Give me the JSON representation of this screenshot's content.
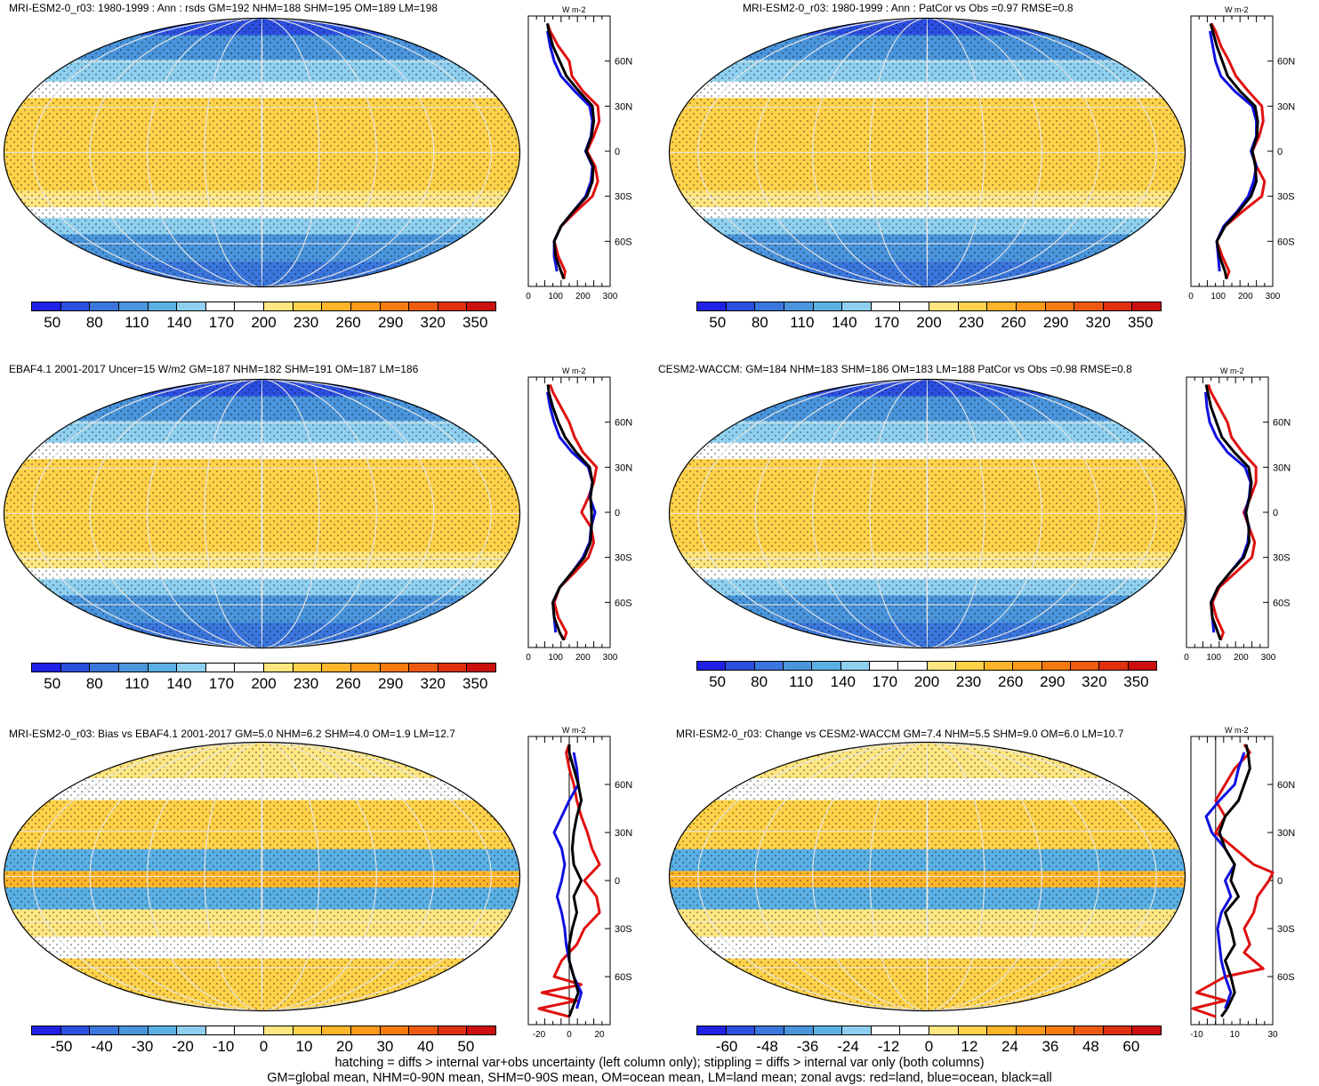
{
  "chart_data": [
    {
      "type": "heatmap",
      "title": "MRI-ESM2-0_r03: 1980-1999 : Ann : rsds GM=192 NHM=188 SHM=195 OM=189 LM=198",
      "colorbar_ticks": [
        "50",
        "80",
        "110",
        "140",
        "170",
        "200",
        "230",
        "260",
        "290",
        "320",
        "350"
      ],
      "colorbar_range": [
        35,
        365
      ],
      "zonal_xticks": [
        "0",
        "100",
        "200",
        "300"
      ],
      "zonal_xlim": [
        0,
        300
      ],
      "zonal_yticks": [
        "60N",
        "30N",
        "0",
        "30S",
        "60S"
      ],
      "zonal_units": "W m-2",
      "zonal_series": [
        {
          "color": "red",
          "lat": [
            -85,
            -80,
            -70,
            -60,
            -50,
            -40,
            -30,
            -20,
            -10,
            0,
            10,
            20,
            30,
            40,
            50,
            60,
            70,
            80,
            85
          ],
          "values": [
            130,
            135,
            110,
            95,
            120,
            175,
            235,
            255,
            245,
            215,
            240,
            260,
            255,
            200,
            160,
            150,
            110,
            80,
            70
          ]
        },
        {
          "color": "blue",
          "lat": [
            -80,
            -70,
            -60,
            -50,
            -40,
            -30,
            -20,
            -10,
            0,
            10,
            20,
            30,
            40,
            50,
            60,
            70,
            80
          ],
          "values": [
            105,
            95,
            95,
            120,
            165,
            210,
            230,
            235,
            210,
            230,
            235,
            225,
            170,
            120,
            95,
            80,
            70
          ]
        },
        {
          "color": "black",
          "lat": [
            -85,
            -80,
            -70,
            -60,
            -50,
            -40,
            -30,
            -20,
            -10,
            0,
            10,
            20,
            30,
            40,
            50,
            60,
            70,
            80,
            85
          ],
          "values": [
            130,
            120,
            100,
            95,
            120,
            165,
            215,
            235,
            238,
            212,
            232,
            240,
            235,
            185,
            140,
            115,
            90,
            75,
            70
          ]
        }
      ]
    },
    {
      "type": "heatmap",
      "title": "MRI-ESM2-0_r03: 1980-1999 : Ann : PatCor vs Obs =0.97 RMSE=0.8",
      "colorbar_ticks": [
        "50",
        "80",
        "110",
        "140",
        "170",
        "200",
        "230",
        "260",
        "290",
        "320",
        "350"
      ],
      "colorbar_range": [
        35,
        365
      ],
      "zonal_xticks": [
        "0",
        "100",
        "200",
        "300"
      ],
      "zonal_xlim": [
        0,
        300
      ],
      "zonal_yticks": [
        "60N",
        "30N",
        "0",
        "30S",
        "60S"
      ],
      "zonal_units": "W m-2",
      "zonal_series": [
        {
          "color": "red",
          "lat": [
            -85,
            -80,
            -70,
            -60,
            -50,
            -40,
            -30,
            -20,
            -10,
            0,
            10,
            20,
            30,
            40,
            50,
            60,
            70,
            80,
            85
          ],
          "values": [
            130,
            140,
            115,
            95,
            125,
            190,
            260,
            270,
            240,
            225,
            250,
            265,
            260,
            210,
            165,
            140,
            110,
            90,
            75
          ]
        },
        {
          "color": "blue",
          "lat": [
            -80,
            -70,
            -60,
            -50,
            -40,
            -30,
            -20,
            -10,
            0,
            10,
            20,
            30,
            40,
            50,
            60,
            70,
            80
          ],
          "values": [
            105,
            100,
            95,
            120,
            170,
            210,
            230,
            240,
            220,
            240,
            240,
            225,
            160,
            110,
            90,
            80,
            70
          ]
        },
        {
          "color": "black",
          "lat": [
            -85,
            -80,
            -70,
            -60,
            -50,
            -40,
            -30,
            -20,
            -10,
            0,
            10,
            20,
            30,
            40,
            50,
            60,
            70,
            80,
            85
          ],
          "values": [
            130,
            125,
            105,
            95,
            125,
            175,
            220,
            240,
            236,
            225,
            242,
            245,
            235,
            180,
            135,
            115,
            95,
            80,
            72
          ]
        }
      ]
    },
    {
      "type": "heatmap",
      "title": "EBAF4.1 2001-2017 Uncer=15 W/m2 GM=187 NHM=182 SHM=191 OM=187 LM=186",
      "colorbar_ticks": [
        "50",
        "80",
        "110",
        "140",
        "170",
        "200",
        "230",
        "260",
        "290",
        "320",
        "350"
      ],
      "colorbar_range": [
        35,
        365
      ],
      "zonal_xticks": [
        "0",
        "100",
        "200",
        "300"
      ],
      "zonal_xlim": [
        0,
        300
      ],
      "zonal_yticks": [
        "60N",
        "30N",
        "0",
        "30S",
        "60S"
      ],
      "zonal_units": "W m-2",
      "zonal_series": [
        {
          "color": "red",
          "lat": [
            -85,
            -80,
            -70,
            -60,
            -50,
            -40,
            -30,
            -20,
            -10,
            0,
            10,
            20,
            30,
            40,
            50,
            60,
            70,
            80,
            85
          ],
          "values": [
            130,
            140,
            110,
            95,
            115,
            170,
            220,
            240,
            230,
            195,
            220,
            240,
            250,
            200,
            170,
            150,
            120,
            90,
            80
          ]
        },
        {
          "color": "blue",
          "lat": [
            -80,
            -70,
            -60,
            -50,
            -40,
            -30,
            -20,
            -10,
            0,
            10,
            20,
            30,
            40,
            50,
            60,
            70,
            80
          ],
          "values": [
            100,
            95,
            90,
            115,
            160,
            200,
            225,
            230,
            245,
            225,
            235,
            220,
            160,
            115,
            95,
            80,
            70
          ]
        },
        {
          "color": "black",
          "lat": [
            -85,
            -80,
            -70,
            -60,
            -50,
            -40,
            -30,
            -20,
            -10,
            0,
            10,
            20,
            30,
            40,
            50,
            60,
            70,
            80,
            85
          ],
          "values": [
            130,
            115,
            95,
            90,
            115,
            160,
            205,
            228,
            232,
            232,
            228,
            235,
            225,
            175,
            135,
            110,
            90,
            75,
            72
          ]
        }
      ]
    },
    {
      "type": "heatmap",
      "title": "CESM2-WACCM: GM=184 NHM=183 SHM=186 OM=183 LM=188 PatCor vs Obs =0.98 RMSE=0.8",
      "colorbar_ticks": [
        "50",
        "80",
        "110",
        "140",
        "170",
        "200",
        "230",
        "260",
        "290",
        "320",
        "350"
      ],
      "colorbar_range": [
        35,
        365
      ],
      "zonal_xticks": [
        "0",
        "100",
        "200",
        "300"
      ],
      "zonal_xlim": [
        0,
        300
      ],
      "zonal_yticks": [
        "60N",
        "30N",
        "0",
        "30S",
        "60S"
      ],
      "zonal_units": "W m-2",
      "zonal_series": [
        {
          "color": "red",
          "lat": [
            -85,
            -80,
            -70,
            -60,
            -50,
            -40,
            -30,
            -20,
            -10,
            0,
            10,
            20,
            30,
            40,
            50,
            60,
            70,
            80,
            85
          ],
          "values": [
            125,
            135,
            110,
            95,
            120,
            180,
            240,
            250,
            230,
            210,
            235,
            255,
            255,
            205,
            165,
            150,
            120,
            90,
            80
          ]
        },
        {
          "color": "blue",
          "lat": [
            -80,
            -70,
            -60,
            -50,
            -40,
            -30,
            -20,
            -10,
            0,
            10,
            20,
            30,
            40,
            50,
            60,
            70,
            80
          ],
          "values": [
            100,
            95,
            90,
            115,
            160,
            205,
            225,
            230,
            215,
            230,
            235,
            215,
            150,
            110,
            85,
            75,
            70
          ]
        },
        {
          "color": "black",
          "lat": [
            -85,
            -80,
            -70,
            -60,
            -50,
            -40,
            -30,
            -20,
            -10,
            0,
            10,
            20,
            30,
            40,
            50,
            60,
            70,
            80,
            85
          ],
          "values": [
            125,
            115,
            95,
            90,
            115,
            160,
            210,
            230,
            228,
            218,
            232,
            238,
            228,
            175,
            130,
            110,
            90,
            78,
            72
          ]
        }
      ]
    },
    {
      "type": "heatmap",
      "title": "MRI-ESM2-0_r03: Bias vs EBAF4.1 2001-2017 GM=5.0 NHM=6.2 SHM=4.0 OM=1.9 LM=12.7",
      "colorbar_ticks": [
        "-50",
        "-40",
        "-30",
        "-20",
        "-10",
        "0",
        "10",
        "20",
        "30",
        "40",
        "50"
      ],
      "colorbar_range": [
        -57.5,
        57.5
      ],
      "zonal_xticks": [
        "-20",
        "0",
        "20"
      ],
      "zonal_xlim": [
        -27,
        27
      ],
      "zonal_yticks": [
        "60N",
        "30N",
        "0",
        "30S",
        "60S"
      ],
      "zonal_units": "W m-2",
      "zonal_series": [
        {
          "color": "red",
          "lat": [
            -85,
            -80,
            -75,
            -70,
            -65,
            -60,
            -50,
            -40,
            -30,
            -20,
            -10,
            0,
            10,
            20,
            30,
            40,
            50,
            60,
            70,
            80,
            85
          ],
          "values": [
            0,
            -20,
            5,
            -18,
            8,
            -10,
            -5,
            5,
            10,
            20,
            18,
            10,
            20,
            15,
            12,
            8,
            5,
            3,
            0,
            -2,
            0
          ]
        },
        {
          "color": "blue",
          "lat": [
            -80,
            -70,
            -60,
            -50,
            -40,
            -30,
            -20,
            -10,
            0,
            10,
            20,
            30,
            40,
            50,
            60,
            70,
            80
          ],
          "values": [
            5,
            8,
            3,
            0,
            -2,
            -3,
            -5,
            -8,
            -5,
            -3,
            -5,
            -10,
            -5,
            0,
            6,
            5,
            3
          ]
        },
        {
          "color": "black",
          "lat": [
            -85,
            -80,
            -70,
            -60,
            -50,
            -40,
            -30,
            -20,
            -10,
            0,
            10,
            20,
            30,
            40,
            50,
            60,
            70,
            80,
            85
          ],
          "values": [
            0,
            2,
            6,
            3,
            0,
            0,
            2,
            5,
            3,
            8,
            3,
            2,
            3,
            5,
            8,
            6,
            3,
            0,
            0
          ]
        }
      ]
    },
    {
      "type": "heatmap",
      "title": "MRI-ESM2-0_r03: Change vs CESM2-WACCM GM=7.4 NHM=5.5 SHM=9.0 OM=6.0 LM=10.7",
      "colorbar_ticks": [
        "-60",
        "-48",
        "-36",
        "-24",
        "-12",
        "0",
        "12",
        "24",
        "36",
        "48",
        "60"
      ],
      "colorbar_range": [
        -69,
        69
      ],
      "zonal_xticks": [
        "-10",
        "10",
        "30"
      ],
      "zonal_xlim": [
        -13,
        30
      ],
      "zonal_yticks": [
        "60N",
        "30N",
        "0",
        "30S",
        "60S"
      ],
      "zonal_units": "W m-2",
      "zonal_series": [
        {
          "color": "red",
          "lat": [
            -85,
            -80,
            -75,
            -70,
            -60,
            -55,
            -50,
            -45,
            -40,
            -30,
            -20,
            -10,
            0,
            5,
            10,
            20,
            30,
            40,
            50,
            60,
            70,
            80,
            85
          ],
          "values": [
            0,
            -12,
            5,
            -10,
            5,
            25,
            20,
            15,
            18,
            15,
            20,
            22,
            28,
            30,
            20,
            10,
            0,
            5,
            0,
            5,
            10,
            18,
            15
          ]
        },
        {
          "color": "blue",
          "lat": [
            -80,
            -70,
            -60,
            -50,
            -40,
            -30,
            -20,
            -10,
            0,
            10,
            20,
            30,
            40,
            50,
            60,
            70,
            80
          ],
          "values": [
            5,
            8,
            5,
            3,
            2,
            1,
            3,
            8,
            5,
            10,
            5,
            -2,
            -5,
            2,
            10,
            12,
            15
          ]
        },
        {
          "color": "black",
          "lat": [
            -85,
            -80,
            -70,
            -60,
            -50,
            -40,
            -30,
            -20,
            -10,
            0,
            10,
            20,
            30,
            40,
            50,
            60,
            70,
            80,
            85
          ],
          "values": [
            3,
            6,
            10,
            8,
            5,
            10,
            8,
            5,
            12,
            8,
            10,
            5,
            2,
            5,
            12,
            15,
            18,
            17,
            16
          ]
        }
      ]
    }
  ],
  "footer": {
    "line1": "hatching = diffs > internal var+obs uncertainty (left column only); stippling = diffs > internal var only (both columns)",
    "line2": "GM=global mean, NHM=0-90N mean, SHM=0-90S mean, OM=ocean mean, LM=land mean; zonal avgs: red=land, blue=ocean, black=all"
  },
  "colors": {
    "palette": [
      "#2020e6",
      "#2c4fe0",
      "#3a76dc",
      "#4a95dc",
      "#5ab0e4",
      "#8fd0f0",
      "#ffffff",
      "#ffffff",
      "#ffe680",
      "#ffd24a",
      "#ffb52a",
      "#ff9a1a",
      "#f77a10",
      "#ee5a10",
      "#e03010",
      "#cc0f0f"
    ],
    "land": "#000000",
    "zonal_land": "#e01010",
    "zonal_ocean": "#1010e0",
    "zonal_all": "#000000"
  }
}
